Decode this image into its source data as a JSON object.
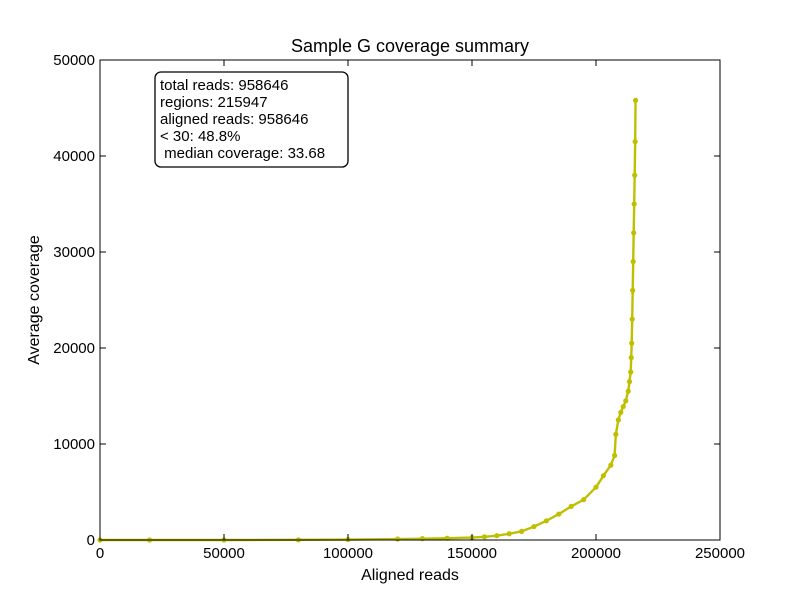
{
  "chart_data": {
    "type": "line",
    "title": "Sample G coverage summary",
    "xlabel": "Aligned reads",
    "ylabel": "Average coverage",
    "xlim": [
      0,
      250000
    ],
    "ylim": [
      0,
      50000
    ],
    "xticks": [
      0,
      50000,
      100000,
      150000,
      200000,
      250000
    ],
    "yticks": [
      0,
      10000,
      20000,
      30000,
      40000,
      50000
    ],
    "xtick_labels": [
      "0",
      "50000",
      "100000",
      "150000",
      "200000",
      "250000"
    ],
    "ytick_labels": [
      "0",
      "10000",
      "20000",
      "30000",
      "40000",
      "50000"
    ],
    "grid": false,
    "series": [
      {
        "color": "#bfbf00",
        "marker": "circle",
        "x": [
          0,
          20000,
          50000,
          80000,
          100000,
          120000,
          130000,
          140000,
          150000,
          155000,
          160000,
          165000,
          170000,
          175000,
          180000,
          185000,
          190000,
          195000,
          200000,
          203000,
          206000,
          207500,
          208000,
          209000,
          210000,
          211000,
          212000,
          213000,
          213500,
          214000,
          214200,
          214400,
          214600,
          214800,
          215000,
          215200,
          215400,
          215600,
          215800,
          215947
        ],
        "y": [
          0,
          0,
          0,
          20,
          50,
          100,
          140,
          190,
          250,
          330,
          450,
          650,
          900,
          1400,
          2000,
          2700,
          3500,
          4200,
          5500,
          6700,
          7800,
          8800,
          11000,
          12500,
          13300,
          13900,
          14500,
          15500,
          16500,
          17500,
          19000,
          20500,
          23000,
          26000,
          29000,
          32000,
          35000,
          38000,
          41500,
          45800
        ]
      }
    ]
  },
  "annotation_box": {
    "lines": [
      "total reads: 958646",
      "regions: 215947",
      "aligned reads: 958646",
      "< 30: 48.8%",
      " median coverage: 33.68"
    ]
  }
}
